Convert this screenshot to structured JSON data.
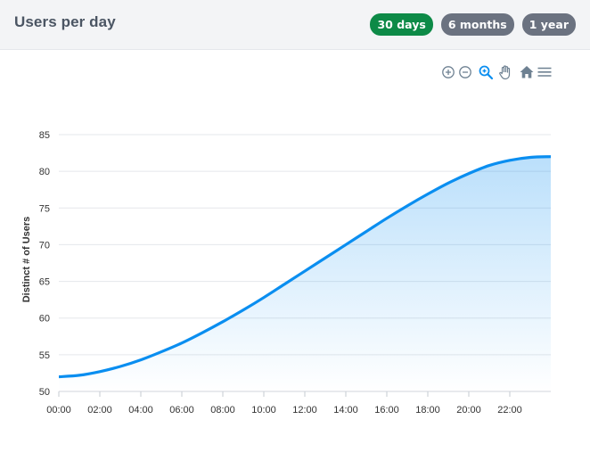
{
  "header": {
    "title": "Users per day",
    "range_buttons": [
      {
        "label": "30 days",
        "active": true
      },
      {
        "label": "6 months",
        "active": false
      },
      {
        "label": "1 year",
        "active": false
      }
    ]
  },
  "toolbar": {
    "icons": [
      "zoom-in-icon",
      "zoom-out-icon",
      "selection-zoom-icon",
      "pan-icon",
      "home-icon",
      "menu-icon"
    ]
  },
  "colors": {
    "line": "#0a8ef0",
    "active_button": "#0d8a47",
    "inactive_button": "#6b7280",
    "grid": "#e5e7eb"
  },
  "chart_data": {
    "type": "area",
    "ylabel": "Distinct # of Users",
    "xlabel": "",
    "ylim": [
      50,
      85
    ],
    "yticks": [
      50,
      55,
      60,
      65,
      70,
      75,
      80,
      85
    ],
    "xticks": [
      "00:00",
      "02:00",
      "04:00",
      "06:00",
      "08:00",
      "10:00",
      "12:00",
      "14:00",
      "16:00",
      "18:00",
      "20:00",
      "22:00"
    ],
    "xlim_hours": [
      0,
      24
    ],
    "grid": true,
    "series": [
      {
        "x": [
          "00:00",
          "01:00",
          "02:00",
          "03:00",
          "04:00",
          "05:00",
          "06:00",
          "07:00",
          "08:00",
          "09:00",
          "10:00",
          "11:00",
          "12:00",
          "13:00",
          "14:00",
          "15:00",
          "16:00",
          "17:00",
          "18:00",
          "19:00",
          "20:00",
          "21:00",
          "22:00",
          "23:00",
          "24:00"
        ],
        "values": [
          52.0,
          52.2,
          52.7,
          53.4,
          54.3,
          55.4,
          56.6,
          58.0,
          59.5,
          61.1,
          62.8,
          64.6,
          66.4,
          68.2,
          70.0,
          71.8,
          73.6,
          75.3,
          76.9,
          78.4,
          79.7,
          80.8,
          81.5,
          81.9,
          82.0
        ]
      }
    ]
  }
}
